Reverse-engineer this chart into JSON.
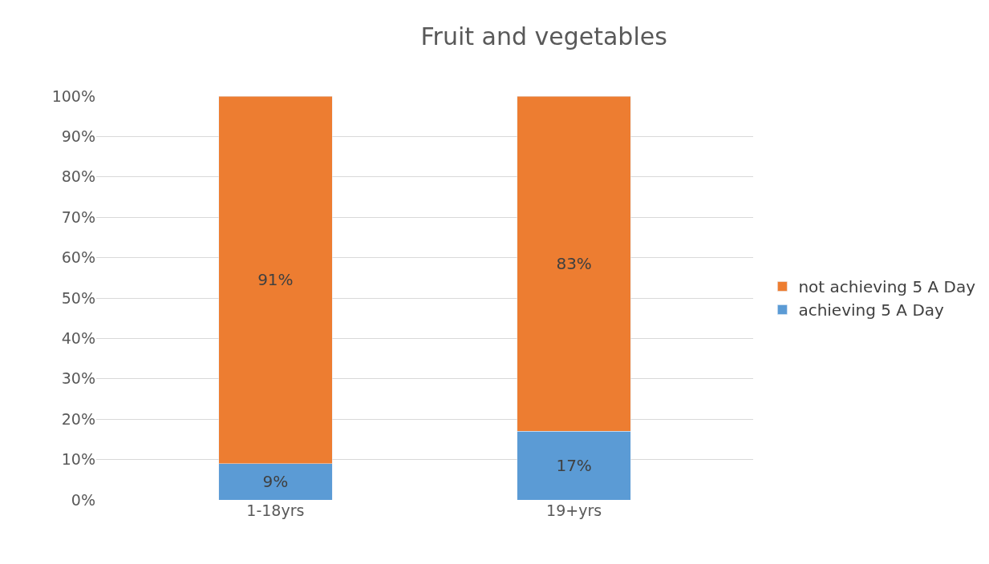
{
  "chart_data": {
    "type": "bar",
    "title": "Fruit and vegetables",
    "categories": [
      "1-18yrs",
      "19+yrs"
    ],
    "series": [
      {
        "name": "achieving 5 A Day",
        "color": "#5b9bd5",
        "values": [
          9,
          17
        ],
        "value_labels": [
          "9%",
          "17%"
        ]
      },
      {
        "name": "not achieving 5 A Day",
        "color": "#ed7d31",
        "values": [
          91,
          83
        ],
        "value_labels": [
          "91%",
          "83%"
        ]
      }
    ],
    "stacked": true,
    "ylim": [
      0,
      100
    ],
    "yticks": [
      {
        "value": 0,
        "label": "0%"
      },
      {
        "value": 10,
        "label": "10%"
      },
      {
        "value": 20,
        "label": "20%"
      },
      {
        "value": 30,
        "label": "30%"
      },
      {
        "value": 40,
        "label": "40%"
      },
      {
        "value": 50,
        "label": "50%"
      },
      {
        "value": 60,
        "label": "60%"
      },
      {
        "value": 70,
        "label": "70%"
      },
      {
        "value": 80,
        "label": "80%"
      },
      {
        "value": 90,
        "label": "90%"
      },
      {
        "value": 100,
        "label": "100%"
      }
    ],
    "grid": "y",
    "legend": "right"
  }
}
